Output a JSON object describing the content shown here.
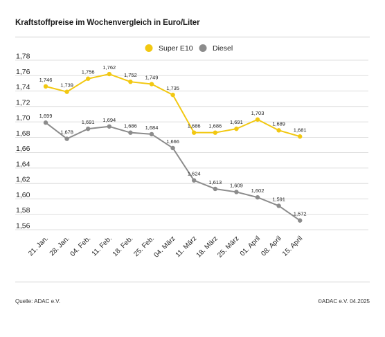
{
  "header": {
    "title": "Kraftstoffpreise im Wochenvergleich in Euro/Liter"
  },
  "footer": {
    "source": "Quelle: ADAC e.V.",
    "copyright": "©ADAC e.V. 04.2025"
  },
  "chart_data": {
    "type": "line",
    "title": "Kraftstoffpreise im Wochenvergleich in Euro/Liter",
    "xlabel": "",
    "ylabel": "",
    "ylim": [
      1.56,
      1.78
    ],
    "yticks": [
      "1,56",
      "1,58",
      "1,60",
      "1,62",
      "1,64",
      "1,66",
      "1,68",
      "1,70",
      "1,72",
      "1,74",
      "1,76",
      "1,78"
    ],
    "grid": true,
    "legend_position": "top-center",
    "categories": [
      "21. Jan.",
      "28. Jan.",
      "04. Feb.",
      "11. Feb.",
      "18. Feb.",
      "25. Feb.",
      "04. März",
      "11. März",
      "18. März",
      "25. März",
      "01. April",
      "08. April",
      "15. April"
    ],
    "series": [
      {
        "name": "Super E10",
        "color": "#f2c811",
        "values": [
          1.746,
          1.739,
          1.756,
          1.762,
          1.752,
          1.749,
          1.735,
          1.686,
          1.686,
          1.691,
          1.703,
          1.689,
          1.681
        ],
        "labels": [
          "1,746",
          "1,739",
          "1,756",
          "1,762",
          "1,752",
          "1,749",
          "1,735",
          "1,686",
          "1,686",
          "1,691",
          "1,703",
          "1,689",
          "1,681"
        ]
      },
      {
        "name": "Diesel",
        "color": "#8c8c8c",
        "values": [
          1.699,
          1.678,
          1.691,
          1.694,
          1.686,
          1.684,
          1.666,
          1.624,
          1.613,
          1.609,
          1.602,
          1.591,
          1.572
        ],
        "labels": [
          "1,699",
          "1,678",
          "1,691",
          "1,694",
          "1,686",
          "1,684",
          "1,666",
          "1,624",
          "1,613",
          "1,609",
          "1,602",
          "1,591",
          "1,572"
        ]
      }
    ]
  }
}
